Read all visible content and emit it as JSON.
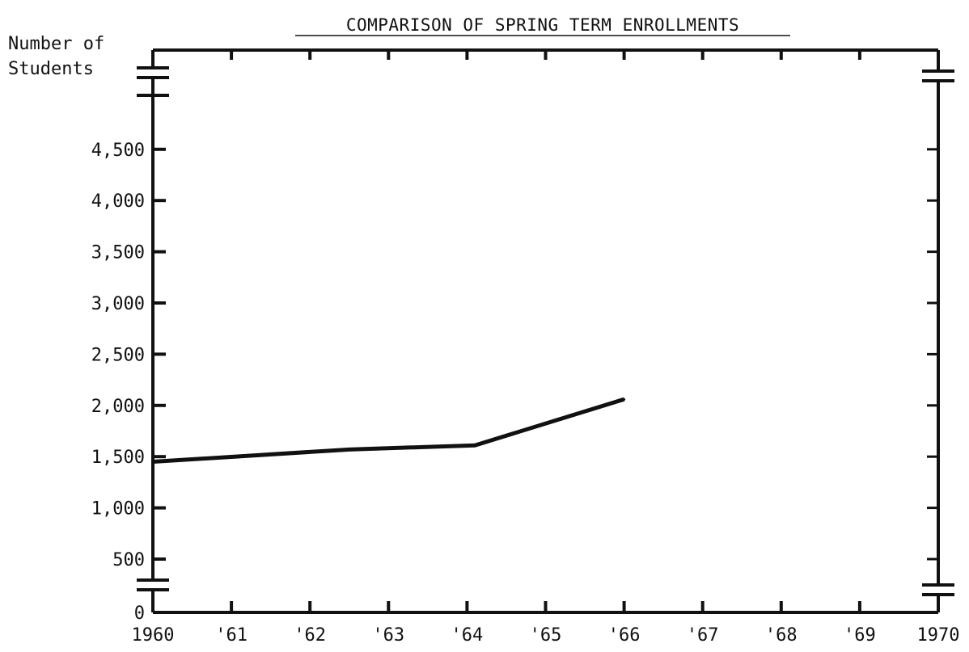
{
  "chart_data": {
    "type": "line",
    "title": "COMPARISON OF SPRING TERM ENROLLMENTS",
    "ylabel": "Number of Students",
    "ylabel_lines": [
      "Number of",
      "Students"
    ],
    "xlabel": "",
    "x_ticks": [
      "1960",
      "'61",
      "'62",
      "'63",
      "'64",
      "'65",
      "'66",
      "'67",
      "'68",
      "'69",
      "1970"
    ],
    "x_tick_values": [
      1960,
      1961,
      1962,
      1963,
      1964,
      1965,
      1966,
      1967,
      1968,
      1969,
      1970
    ],
    "y_ticks": [
      "0",
      "500",
      "1,000",
      "1,500",
      "2,000",
      "2,500",
      "3,000",
      "3,500",
      "4,000",
      "4,500"
    ],
    "y_tick_values": [
      0,
      500,
      1000,
      1500,
      2000,
      2500,
      3000,
      3500,
      4000,
      4500
    ],
    "xlim": [
      1960,
      1970
    ],
    "ylim": [
      0,
      5200
    ],
    "y_axis_break": true,
    "grid": false,
    "legend": "none",
    "line_color": "#111111",
    "series": [
      {
        "x": [
          1960,
          1962.5,
          1964.1,
          1966
        ],
        "y": [
          1450,
          1570,
          1610,
          2060
        ]
      }
    ]
  }
}
